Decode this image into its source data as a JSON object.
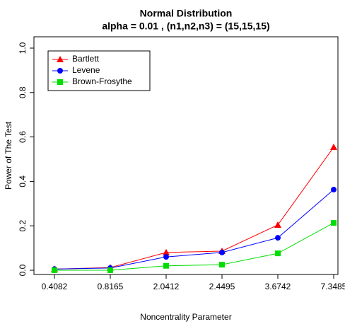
{
  "chart_data": {
    "type": "line",
    "title": "Normal Distribution",
    "subtitle": "alpha = 0.01 , (n1,n2,n3) = (15,15,15)",
    "x_label": "Noncentrality Parameter",
    "y_label": "Power of The Test",
    "categories": [
      "0.4082",
      "0.8165",
      "2.0412",
      "2.4495",
      "3.6742",
      "7.3485"
    ],
    "series": [
      {
        "name": "Bartlett",
        "color": "#ff0000",
        "marker": "triangle",
        "values": [
          0.005,
          0.012,
          0.08,
          0.086,
          0.204,
          0.554
        ]
      },
      {
        "name": "Levene",
        "color": "#0000ff",
        "marker": "circle",
        "values": [
          0.005,
          0.01,
          0.06,
          0.08,
          0.146,
          0.363
        ]
      },
      {
        "name": "Brown-Frosythe",
        "color": "#00dd00",
        "marker": "square",
        "values": [
          0.0,
          0.0,
          0.02,
          0.025,
          0.076,
          0.213
        ]
      }
    ],
    "ylim": [
      0,
      1
    ],
    "yticks": [
      {
        "value": 0,
        "label": "0.0"
      },
      0.2,
      0.4,
      0.6,
      0.8,
      {
        "value": 1,
        "label": "1.0"
      }
    ],
    "legend": "top-left"
  }
}
